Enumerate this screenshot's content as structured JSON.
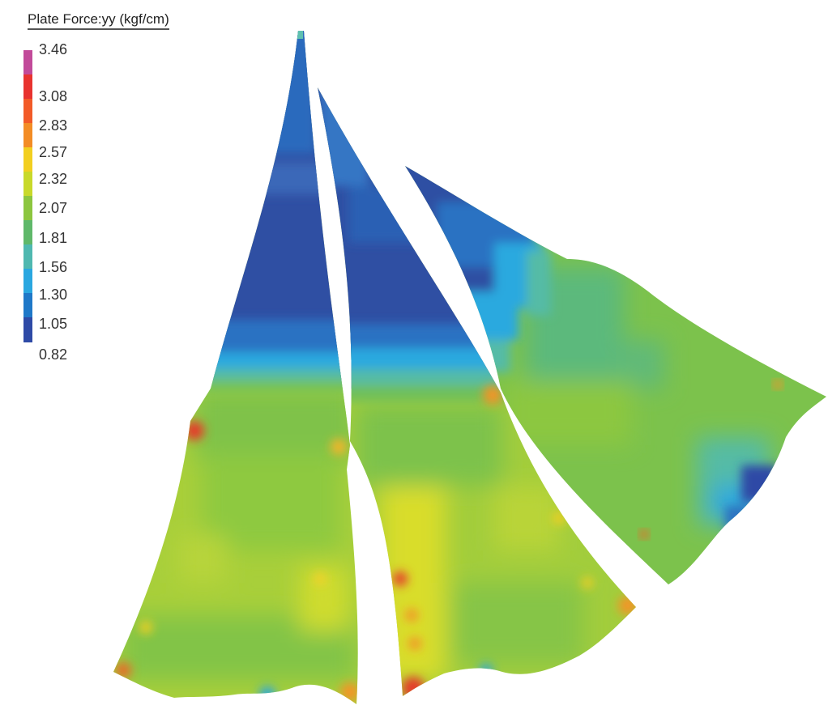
{
  "legend": {
    "title": "Plate Force:yy (kgf/cm)",
    "levels": [
      "3.46",
      "3.08",
      "2.83",
      "2.57",
      "2.32",
      "2.07",
      "1.81",
      "1.56",
      "1.30",
      "1.05",
      "0.82"
    ],
    "colors": [
      "#c24a9a",
      "#e8332f",
      "#f25a28",
      "#f38c25",
      "#f2cf20",
      "#c8d92a",
      "#8cc63f",
      "#5fb86a",
      "#4fb8b0",
      "#2aa7e0",
      "#1f78c8",
      "#2e4aa6"
    ]
  },
  "colors": {
    "deep_blue": "#2f4fa3",
    "blue": "#2c78c6",
    "light_blue": "#2ab1e4",
    "teal": "#54bba8",
    "green": "#7dc34a",
    "yellow_green": "#a9cf3a",
    "yellow": "#d7de2a",
    "orange": "#f39428",
    "red": "#e53a2c"
  }
}
